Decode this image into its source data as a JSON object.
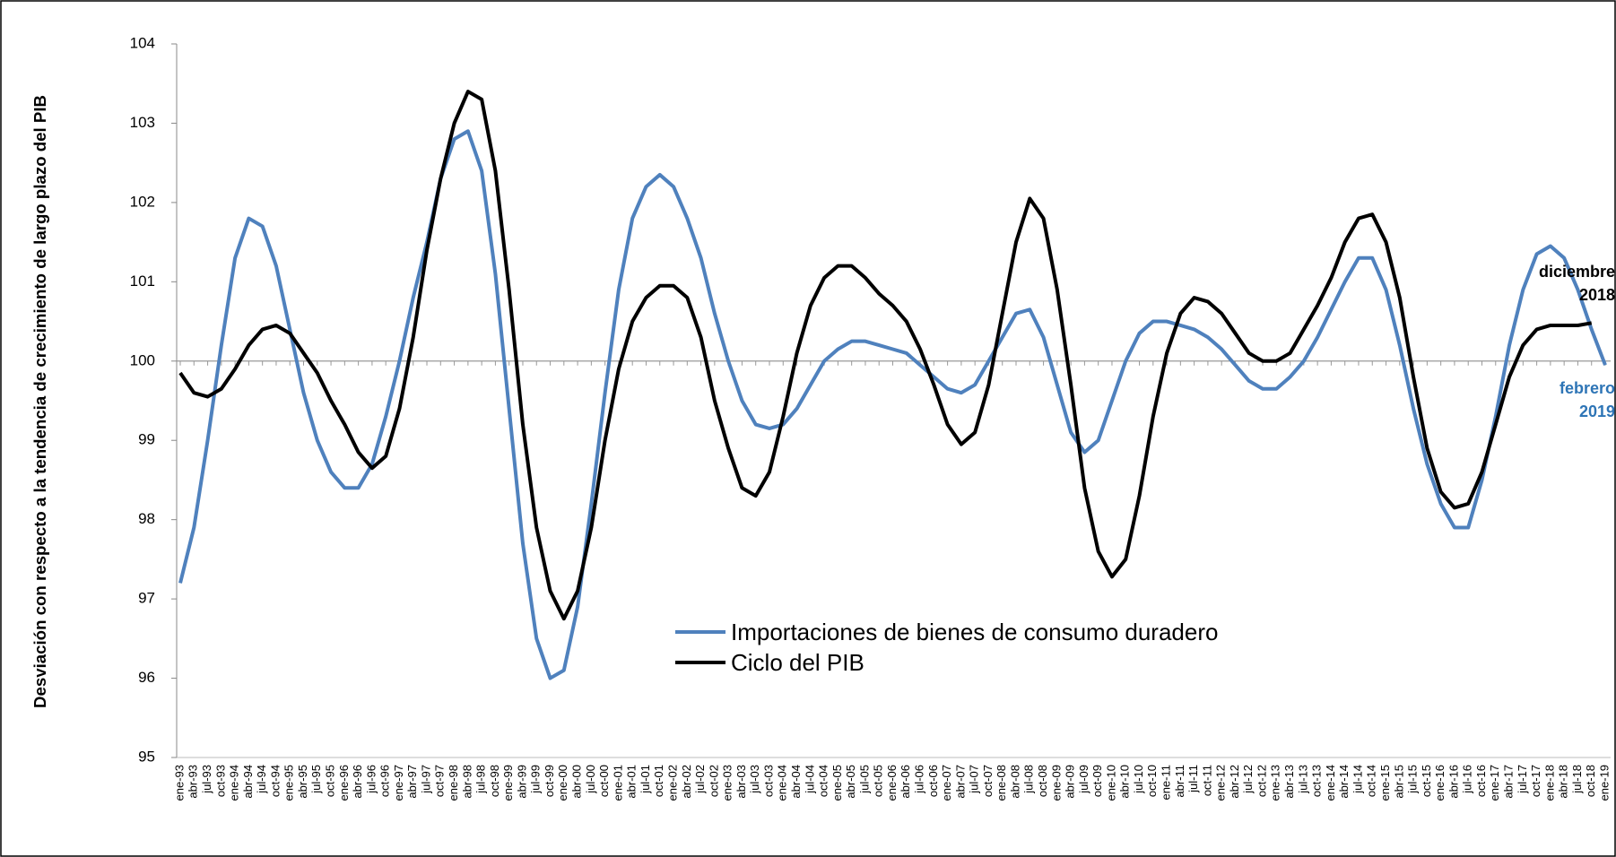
{
  "chart_data": {
    "type": "line",
    "y_label": "Desviación con respecto a la tendencia de crecimiento de largo plazo del PIB",
    "categories": [
      "ene-93",
      "abr-93",
      "jul-93",
      "oct-93",
      "ene-94",
      "abr-94",
      "jul-94",
      "oct-94",
      "ene-95",
      "abr-95",
      "jul-95",
      "oct-95",
      "ene-96",
      "abr-96",
      "jul-96",
      "oct-96",
      "ene-97",
      "abr-97",
      "jul-97",
      "oct-97",
      "ene-98",
      "abr-98",
      "jul-98",
      "oct-98",
      "ene-99",
      "abr-99",
      "jul-99",
      "oct-99",
      "ene-00",
      "abr-00",
      "jul-00",
      "oct-00",
      "ene-01",
      "abr-01",
      "jul-01",
      "oct-01",
      "ene-02",
      "abr-02",
      "jul-02",
      "oct-02",
      "ene-03",
      "abr-03",
      "jul-03",
      "oct-03",
      "ene-04",
      "abr-04",
      "jul-04",
      "oct-04",
      "ene-05",
      "abr-05",
      "jul-05",
      "oct-05",
      "ene-06",
      "abr-06",
      "jul-06",
      "oct-06",
      "ene-07",
      "abr-07",
      "jul-07",
      "oct-07",
      "ene-08",
      "abr-08",
      "jul-08",
      "oct-08",
      "ene-09",
      "abr-09",
      "jul-09",
      "oct-09",
      "ene-10",
      "abr-10",
      "jul-10",
      "oct-10",
      "ene-11",
      "abr-11",
      "jul-11",
      "oct-11",
      "ene-12",
      "abr-12",
      "jul-12",
      "oct-12",
      "ene-13",
      "abr-13",
      "jul-13",
      "oct-13",
      "ene-14",
      "abr-14",
      "jul-14",
      "oct-14",
      "ene-15",
      "abr-15",
      "jul-15",
      "oct-15",
      "ene-16",
      "abr-16",
      "jul-16",
      "oct-16",
      "ene-17",
      "abr-17",
      "jul-17",
      "oct-17",
      "ene-18",
      "abr-18",
      "jul-18",
      "oct-18",
      "ene-19"
    ],
    "series": [
      {
        "name": "Importaciones de bienes de consumo duradero",
        "color": "#4f81bd",
        "values": [
          97.2,
          97.9,
          99.0,
          100.2,
          101.3,
          101.8,
          101.7,
          101.2,
          100.4,
          99.6,
          99.0,
          98.6,
          98.4,
          98.4,
          98.7,
          99.3,
          100.0,
          100.8,
          101.5,
          102.3,
          102.8,
          102.9,
          102.4,
          101.1,
          99.4,
          97.7,
          96.5,
          96.0,
          96.1,
          96.9,
          98.2,
          99.6,
          100.9,
          101.8,
          102.2,
          102.35,
          102.2,
          101.8,
          101.3,
          100.6,
          100.0,
          99.5,
          99.2,
          99.15,
          99.2,
          99.4,
          99.7,
          100.0,
          100.15,
          100.25,
          100.25,
          100.2,
          100.15,
          100.1,
          99.95,
          99.8,
          99.65,
          99.6,
          99.7,
          100.0,
          100.3,
          100.6,
          100.65,
          100.3,
          99.7,
          99.1,
          98.85,
          99.0,
          99.5,
          100.0,
          100.35,
          100.5,
          100.5,
          100.45,
          100.4,
          100.3,
          100.15,
          99.95,
          99.75,
          99.65,
          99.65,
          99.8,
          100.0,
          100.3,
          100.65,
          101.0,
          101.3,
          101.3,
          100.9,
          100.2,
          99.4,
          98.7,
          98.2,
          97.9,
          97.9,
          98.5,
          99.3,
          100.2,
          100.9,
          101.35,
          101.45,
          101.3,
          100.9,
          100.4,
          99.95
        ]
      },
      {
        "name": "Ciclo del PIB",
        "color": "#000000",
        "values": [
          99.85,
          99.6,
          99.55,
          99.65,
          99.9,
          100.2,
          100.4,
          100.45,
          100.35,
          100.1,
          99.85,
          99.5,
          99.2,
          98.85,
          98.65,
          98.8,
          99.4,
          100.3,
          101.4,
          102.3,
          103.0,
          103.4,
          103.3,
          102.4,
          100.9,
          99.2,
          97.9,
          97.1,
          96.75,
          97.1,
          97.9,
          99.0,
          99.9,
          100.5,
          100.8,
          100.95,
          100.95,
          100.8,
          100.3,
          99.5,
          98.9,
          98.4,
          98.3,
          98.6,
          99.3,
          100.1,
          100.7,
          101.05,
          101.2,
          101.2,
          101.05,
          100.85,
          100.7,
          100.5,
          100.15,
          99.7,
          99.2,
          98.95,
          99.1,
          99.7,
          100.6,
          101.5,
          102.05,
          101.8,
          100.9,
          99.7,
          98.4,
          97.6,
          97.28,
          97.5,
          98.3,
          99.3,
          100.1,
          100.6,
          100.8,
          100.75,
          100.6,
          100.35,
          100.1,
          100.0,
          100.0,
          100.1,
          100.4,
          100.7,
          101.05,
          101.5,
          101.8,
          101.85,
          101.5,
          100.8,
          99.8,
          98.9,
          98.35,
          98.15,
          98.2,
          98.6,
          99.2,
          99.8,
          100.2,
          100.4,
          100.45,
          100.45,
          100.45,
          100.48,
          null
        ]
      }
    ],
    "ylim": [
      95,
      104
    ],
    "yticks": [
      95,
      96,
      97,
      98,
      99,
      100,
      101,
      102,
      103,
      104
    ],
    "reference_line": 100,
    "grid": false,
    "annotations": [
      {
        "lines": [
          "diciembre",
          "2018"
        ],
        "color": "#000000"
      },
      {
        "lines": [
          "febrero",
          "2019"
        ],
        "color": "#2e75b6"
      }
    ]
  }
}
